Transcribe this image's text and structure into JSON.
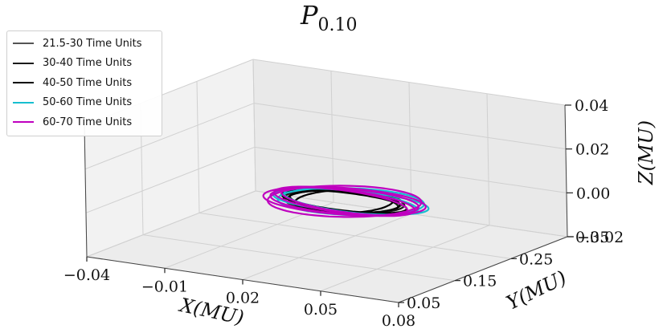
{
  "chart_data": {
    "type": "line",
    "projection": "3d",
    "title": "P",
    "title_subscript": "0.10",
    "xlabel": "X(MU)",
    "ylabel": "Y(MU)",
    "zlabel": "Z(MU)",
    "xlim": [
      -0.04,
      0.08
    ],
    "ylim": [
      0.05,
      0.35
    ],
    "zlim": [
      -0.02,
      0.04
    ],
    "x_ticks": [
      "−0.04",
      "−0.01",
      "0.02",
      "0.05",
      "0.08"
    ],
    "y_ticks": [
      "0.05",
      "0.15",
      "0.25",
      "0.35"
    ],
    "z_ticks": [
      "−0.02",
      "0.00",
      "0.02",
      "0.04"
    ],
    "grid": true,
    "legend_position": "upper-left",
    "series": [
      {
        "name": "21.5-30 Time Units",
        "color": "#555555",
        "center": [
          0.024,
          0.213,
          0.0
        ],
        "loops": [
          {
            "rx": 0.021,
            "ry": 0.037,
            "z": 0.0015,
            "phase": 0.0
          }
        ]
      },
      {
        "name": "30-40 Time Units",
        "color": "#1a1a1a",
        "center": [
          0.024,
          0.213,
          0.0
        ],
        "loops": [
          {
            "rx": 0.022,
            "ry": 0.035,
            "z": 0.001,
            "phase": 0.4
          },
          {
            "rx": 0.019,
            "ry": 0.039,
            "z": -0.001,
            "phase": 1.2
          }
        ]
      },
      {
        "name": "40-50 Time Units",
        "color": "#000000",
        "center": [
          0.024,
          0.213,
          0.0
        ],
        "loops": [
          {
            "rx": 0.02,
            "ry": 0.036,
            "z": 0.0005,
            "phase": 2.0
          },
          {
            "rx": 0.023,
            "ry": 0.033,
            "z": -0.0005,
            "phase": 2.6
          },
          {
            "rx": 0.017,
            "ry": 0.04,
            "z": 0.0015,
            "phase": 3.3
          }
        ]
      },
      {
        "name": "50-60 Time Units",
        "color": "#17becf",
        "center": [
          0.026,
          0.216,
          0.0
        ],
        "loops": [
          {
            "rx": 0.027,
            "ry": 0.038,
            "z": 0.0025,
            "phase": 0.7
          },
          {
            "rx": 0.024,
            "ry": 0.043,
            "z": -0.0015,
            "phase": 1.9
          },
          {
            "rx": 0.029,
            "ry": 0.034,
            "z": 0.001,
            "phase": 4.0
          }
        ]
      },
      {
        "name": "60-70 Time Units",
        "color": "#bf00bf",
        "center": [
          0.024,
          0.214,
          0.0
        ],
        "loops": [
          {
            "rx": 0.028,
            "ry": 0.045,
            "z": 0.003,
            "phase": 0.2
          },
          {
            "rx": 0.025,
            "ry": 0.048,
            "z": -0.002,
            "phase": 1.5
          },
          {
            "rx": 0.03,
            "ry": 0.041,
            "z": 0.0015,
            "phase": 2.8
          },
          {
            "rx": 0.022,
            "ry": 0.046,
            "z": -0.0025,
            "phase": 3.9
          },
          {
            "rx": 0.027,
            "ry": 0.043,
            "z": 0.0005,
            "phase": 5.1
          }
        ]
      }
    ]
  }
}
